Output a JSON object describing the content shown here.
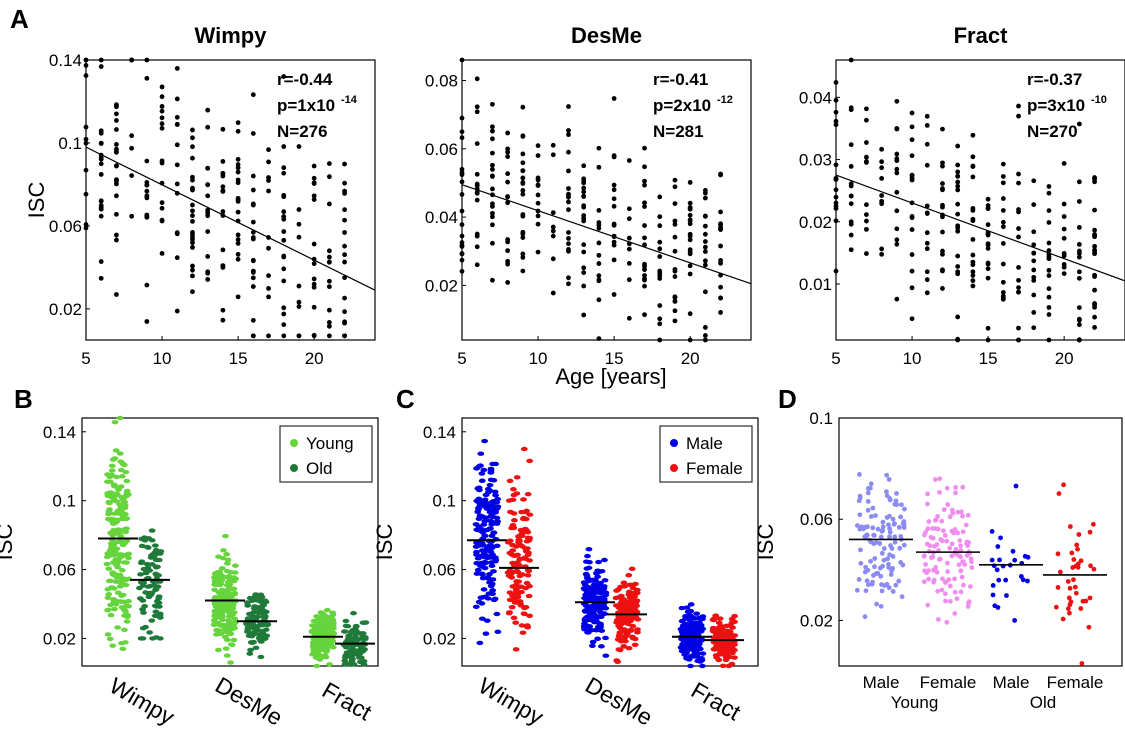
{
  "panel_labels": {
    "A": "A",
    "B": "B",
    "C": "C",
    "D": "D"
  },
  "shared_xlabel": "Age [years]",
  "chart_data": [
    {
      "id": "A-wimpy",
      "type": "scatter",
      "title": "Wimpy",
      "ylabel": "ISC",
      "xlim": [
        5,
        24
      ],
      "ylim": [
        0.005,
        0.14
      ],
      "xticks": [
        5,
        10,
        15,
        20
      ],
      "yticks": [
        0.02,
        0.06,
        0.1,
        0.14
      ],
      "ytick_labels": [
        "0.02",
        "0.06",
        "0.1",
        "0.14"
      ],
      "stats": [
        "r=-0.44",
        "p=1x10",
        "-14",
        "N=276"
      ],
      "fit_line": {
        "x": [
          5,
          24
        ],
        "y": [
          0.098,
          0.029
        ]
      },
      "points": {
        "n": 276,
        "slope": -0.00363,
        "intercept": 0.1162,
        "spread": 0.028,
        "x_range": [
          5,
          22
        ],
        "ymin": 0.007,
        "ymax": 0.14,
        "seed": 11
      },
      "series": [
        {
          "name": "",
          "color": "#000000"
        }
      ]
    },
    {
      "id": "A-desme",
      "type": "scatter",
      "title": "DesMe",
      "ylabel": "",
      "xlim": [
        5,
        24
      ],
      "ylim": [
        0.004,
        0.086
      ],
      "xticks": [
        5,
        10,
        15,
        20
      ],
      "yticks": [
        0.02,
        0.04,
        0.06,
        0.08
      ],
      "ytick_labels": [
        "0.02",
        "0.04",
        "0.06",
        "0.08"
      ],
      "stats": [
        "r=-0.41",
        "p=2x10",
        "-12",
        "N=281"
      ],
      "fit_line": {
        "x": [
          5,
          24
        ],
        "y": [
          0.0495,
          0.0205
        ]
      },
      "points": {
        "n": 281,
        "slope": -0.00153,
        "intercept": 0.0571,
        "spread": 0.014,
        "x_range": [
          5,
          22
        ],
        "ymin": 0.004,
        "ymax": 0.086,
        "seed": 23
      },
      "series": [
        {
          "name": "",
          "color": "#000000"
        }
      ]
    },
    {
      "id": "A-fract",
      "type": "scatter",
      "title": "Fract",
      "ylabel": "",
      "xlim": [
        5,
        24
      ],
      "ylim": [
        0.001,
        0.046
      ],
      "xticks": [
        5,
        10,
        15,
        20
      ],
      "yticks": [
        0.01,
        0.02,
        0.03,
        0.04
      ],
      "ytick_labels": [
        "0.01",
        "0.02",
        "0.03",
        "0.04"
      ],
      "stats": [
        "r=-0.37",
        "p=3x10",
        "-10",
        "N=270"
      ],
      "fit_line": {
        "x": [
          5,
          24
        ],
        "y": [
          0.0275,
          0.0105
        ]
      },
      "points": {
        "n": 270,
        "slope": -0.00089,
        "intercept": 0.032,
        "spread": 0.0085,
        "x_range": [
          5,
          22
        ],
        "ymin": 0.001,
        "ymax": 0.046,
        "seed": 37
      },
      "series": [
        {
          "name": "",
          "color": "#000000"
        }
      ]
    },
    {
      "id": "B",
      "type": "scatter",
      "title": "",
      "ylabel": "ISC",
      "ylim": [
        0.004,
        0.148
      ],
      "yticks": [
        0.02,
        0.06,
        0.1,
        0.14
      ],
      "ytick_labels": [
        "0.02",
        "0.06",
        "0.1",
        "0.14"
      ],
      "categories": [
        "Wimpy",
        "DesMe",
        "Fract"
      ],
      "legend": {
        "position": "top-right"
      },
      "series": [
        {
          "name": "Young",
          "color": "#66d43c",
          "median": [
            0.078,
            0.042,
            0.021
          ],
          "n": [
            200,
            200,
            200
          ],
          "spread": [
            0.035,
            0.016,
            0.009
          ],
          "range": [
            [
              0.014,
              0.148
            ],
            [
              0.006,
              0.088
            ],
            [
              0.004,
              0.047
            ]
          ]
        },
        {
          "name": "Old",
          "color": "#1f7a3a",
          "median": [
            0.054,
            0.03,
            0.017
          ],
          "n": [
            90,
            90,
            90
          ],
          "spread": [
            0.025,
            0.012,
            0.008
          ],
          "range": [
            [
              0.02,
              0.126
            ],
            [
              0.009,
              0.058
            ],
            [
              0.005,
              0.041
            ]
          ]
        }
      ]
    },
    {
      "id": "C",
      "type": "scatter",
      "title": "",
      "ylabel": "ISC",
      "ylim": [
        0.004,
        0.148
      ],
      "yticks": [
        0.02,
        0.06,
        0.1,
        0.14
      ],
      "ytick_labels": [
        "0.02",
        "0.06",
        "0.1",
        "0.14"
      ],
      "categories": [
        "Wimpy",
        "DesMe",
        "Fract"
      ],
      "legend": {
        "position": "top-right"
      },
      "series": [
        {
          "name": "Male",
          "color": "#0000e6",
          "median": [
            0.077,
            0.041,
            0.021
          ],
          "n": [
            170,
            170,
            170
          ],
          "spread": [
            0.034,
            0.015,
            0.009
          ],
          "range": [
            [
              0.014,
              0.145
            ],
            [
              0.008,
              0.09
            ],
            [
              0.004,
              0.049
            ]
          ]
        },
        {
          "name": "Female",
          "color": "#ee1111",
          "median": [
            0.061,
            0.034,
            0.019
          ],
          "n": [
            130,
            130,
            130
          ],
          "spread": [
            0.03,
            0.014,
            0.008
          ],
          "range": [
            [
              0.005,
              0.13
            ],
            [
              0.006,
              0.072
            ],
            [
              0.004,
              0.042
            ]
          ]
        }
      ]
    },
    {
      "id": "D",
      "type": "scatter",
      "title": "",
      "ylabel": "ISC",
      "ylim": [
        0.002,
        0.1
      ],
      "yticks": [
        0.02,
        0.06,
        0.1
      ],
      "ytick_labels": [
        "0.02",
        "0.06",
        "0.1"
      ],
      "categories": [
        "Male",
        "Female",
        "Male",
        "Female"
      ],
      "group_labels": [
        "Young",
        "Old"
      ],
      "series": [
        {
          "name": "Male Young",
          "color": "#8c8cf0",
          "median": 0.052,
          "n": 120,
          "spread": 0.018,
          "range": [
            0.007,
            0.094
          ]
        },
        {
          "name": "Female Young",
          "color": "#f08ef0",
          "median": 0.047,
          "n": 120,
          "spread": 0.018,
          "range": [
            0.005,
            0.076
          ]
        },
        {
          "name": "Male Old",
          "color": "#0000e6",
          "median": 0.042,
          "n": 26,
          "spread": 0.014,
          "range": [
            0.02,
            0.082
          ]
        },
        {
          "name": "Female Old",
          "color": "#ee1111",
          "median": 0.038,
          "n": 38,
          "spread": 0.02,
          "range": [
            0.003,
            0.096
          ]
        }
      ]
    }
  ]
}
